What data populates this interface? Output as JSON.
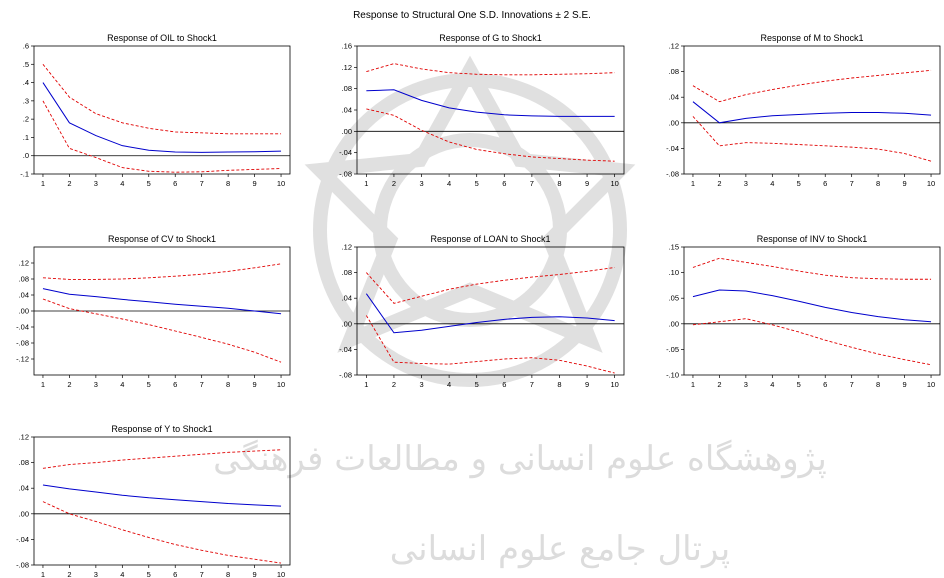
{
  "title": "Response to Structural One S.D. Innovations ± 2 S.E.",
  "watermark": {
    "line1": "پژوهشگاه علوم انسانی و مطالعات فرهنگی",
    "line2": "پرتال جامع علوم انسانی"
  },
  "colors": {
    "response": "#0000cc",
    "band": "#e00000",
    "zero": "#000000",
    "watermark": "#dcdcdc"
  },
  "chart_data": [
    {
      "type": "line",
      "title": "Response of OIL to Shock1",
      "x": [
        1,
        2,
        3,
        4,
        5,
        6,
        7,
        8,
        9,
        10
      ],
      "x_tick_labels": [
        "1",
        "2",
        "3",
        "4",
        "5",
        "6",
        "7",
        "8",
        "9",
        "10"
      ],
      "ylim": [
        -0.1,
        0.6
      ],
      "y_ticks": [
        -0.1,
        0.0,
        0.1,
        0.2,
        0.3,
        0.4,
        0.5,
        0.6
      ],
      "y_tick_labels": [
        "-.1",
        ".0",
        ".1",
        ".2",
        ".3",
        ".4",
        ".5",
        ".6"
      ],
      "series": [
        {
          "role": "response",
          "values": [
            0.4,
            0.18,
            0.11,
            0.055,
            0.03,
            0.02,
            0.018,
            0.02,
            0.022,
            0.025
          ]
        },
        {
          "role": "upper",
          "values": [
            0.5,
            0.32,
            0.23,
            0.18,
            0.15,
            0.13,
            0.125,
            0.12,
            0.12,
            0.12
          ]
        },
        {
          "role": "lower",
          "values": [
            0.3,
            0.04,
            -0.01,
            -0.065,
            -0.085,
            -0.09,
            -0.088,
            -0.08,
            -0.075,
            -0.07
          ]
        }
      ]
    },
    {
      "type": "line",
      "title": "Response of G to Shock1",
      "x": [
        1,
        2,
        3,
        4,
        5,
        6,
        7,
        8,
        9,
        10
      ],
      "x_tick_labels": [
        "1",
        "2",
        "3",
        "4",
        "5",
        "6",
        "7",
        "8",
        "9",
        "10"
      ],
      "ylim": [
        -0.08,
        0.16
      ],
      "y_ticks": [
        -0.08,
        -0.04,
        0.0,
        0.04,
        0.08,
        0.12,
        0.16
      ],
      "y_tick_labels": [
        "-.08",
        "-.04",
        ".00",
        ".04",
        ".08",
        ".12",
        ".16"
      ],
      "series": [
        {
          "role": "response",
          "values": [
            0.076,
            0.078,
            0.058,
            0.044,
            0.036,
            0.031,
            0.029,
            0.028,
            0.028,
            0.028
          ]
        },
        {
          "role": "upper",
          "values": [
            0.112,
            0.127,
            0.117,
            0.11,
            0.107,
            0.106,
            0.106,
            0.107,
            0.108,
            0.11
          ]
        },
        {
          "role": "lower",
          "values": [
            0.042,
            0.03,
            0.002,
            -0.02,
            -0.034,
            -0.042,
            -0.048,
            -0.051,
            -0.054,
            -0.056
          ]
        }
      ]
    },
    {
      "type": "line",
      "title": "Response of M to Shock1",
      "x": [
        1,
        2,
        3,
        4,
        5,
        6,
        7,
        8,
        9,
        10
      ],
      "x_tick_labels": [
        "1",
        "2",
        "3",
        "4",
        "5",
        "6",
        "7",
        "8",
        "9",
        "10"
      ],
      "ylim": [
        -0.08,
        0.12
      ],
      "y_ticks": [
        -0.08,
        -0.04,
        0.0,
        0.04,
        0.08,
        0.12
      ],
      "y_tick_labels": [
        "-.08",
        "-.04",
        ".00",
        ".04",
        ".08",
        ".12"
      ],
      "series": [
        {
          "role": "response",
          "values": [
            0.033,
            0.0,
            0.007,
            0.011,
            0.013,
            0.015,
            0.016,
            0.016,
            0.015,
            0.012
          ]
        },
        {
          "role": "upper",
          "values": [
            0.058,
            0.033,
            0.044,
            0.052,
            0.059,
            0.065,
            0.07,
            0.074,
            0.078,
            0.082
          ]
        },
        {
          "role": "lower",
          "values": [
            0.01,
            -0.036,
            -0.031,
            -0.032,
            -0.034,
            -0.036,
            -0.038,
            -0.041,
            -0.048,
            -0.06
          ]
        }
      ]
    },
    {
      "type": "line",
      "title": "Response of CV to Shock1",
      "x": [
        1,
        2,
        3,
        4,
        5,
        6,
        7,
        8,
        9,
        10
      ],
      "x_tick_labels": [
        "1",
        "2",
        "3",
        "4",
        "5",
        "6",
        "7",
        "8",
        "9",
        "10"
      ],
      "ylim": [
        -0.16,
        0.16
      ],
      "y_ticks": [
        -0.12,
        -0.08,
        -0.04,
        0.0,
        0.04,
        0.08,
        0.12
      ],
      "y_tick_labels": [
        "-.12",
        "-.08",
        "-.04",
        ".00",
        ".04",
        ".08",
        ".12"
      ],
      "series": [
        {
          "role": "response",
          "values": [
            0.056,
            0.042,
            0.036,
            0.029,
            0.023,
            0.017,
            0.012,
            0.007,
            0.0,
            -0.007
          ]
        },
        {
          "role": "upper",
          "values": [
            0.083,
            0.079,
            0.079,
            0.08,
            0.083,
            0.087,
            0.092,
            0.099,
            0.108,
            0.118
          ]
        },
        {
          "role": "lower",
          "values": [
            0.03,
            0.006,
            -0.007,
            -0.02,
            -0.034,
            -0.05,
            -0.066,
            -0.083,
            -0.103,
            -0.128
          ]
        }
      ]
    },
    {
      "type": "line",
      "title": "Response of LOAN to Shock1",
      "x": [
        1,
        2,
        3,
        4,
        5,
        6,
        7,
        8,
        9,
        10
      ],
      "x_tick_labels": [
        "1",
        "2",
        "3",
        "4",
        "5",
        "6",
        "7",
        "8",
        "9",
        "10"
      ],
      "ylim": [
        -0.08,
        0.12
      ],
      "y_ticks": [
        -0.08,
        -0.04,
        0.0,
        0.04,
        0.08,
        0.12
      ],
      "y_tick_labels": [
        "-.08",
        "-.04",
        ".00",
        ".04",
        ".08",
        ".12"
      ],
      "series": [
        {
          "role": "response",
          "values": [
            0.047,
            -0.014,
            -0.01,
            -0.004,
            0.002,
            0.007,
            0.01,
            0.011,
            0.009,
            0.005
          ]
        },
        {
          "role": "upper",
          "values": [
            0.08,
            0.032,
            0.043,
            0.054,
            0.062,
            0.068,
            0.073,
            0.077,
            0.082,
            0.088
          ]
        },
        {
          "role": "lower",
          "values": [
            0.013,
            -0.06,
            -0.062,
            -0.063,
            -0.059,
            -0.055,
            -0.053,
            -0.057,
            -0.066,
            -0.077
          ]
        }
      ]
    },
    {
      "type": "line",
      "title": "Response of INV to Shock1",
      "x": [
        1,
        2,
        3,
        4,
        5,
        6,
        7,
        8,
        9,
        10
      ],
      "x_tick_labels": [
        "1",
        "2",
        "3",
        "4",
        "5",
        "6",
        "7",
        "8",
        "9",
        "10"
      ],
      "ylim": [
        -0.1,
        0.15
      ],
      "y_ticks": [
        -0.1,
        -0.05,
        0.0,
        0.05,
        0.1,
        0.15
      ],
      "y_tick_labels": [
        "-.10",
        "-.05",
        ".00",
        ".05",
        ".10",
        ".15"
      ],
      "series": [
        {
          "role": "response",
          "values": [
            0.053,
            0.066,
            0.064,
            0.055,
            0.044,
            0.032,
            0.022,
            0.014,
            0.008,
            0.004
          ]
        },
        {
          "role": "upper",
          "values": [
            0.11,
            0.128,
            0.12,
            0.112,
            0.103,
            0.095,
            0.09,
            0.088,
            0.087,
            0.087
          ]
        },
        {
          "role": "lower",
          "values": [
            -0.002,
            0.004,
            0.01,
            -0.002,
            -0.016,
            -0.032,
            -0.046,
            -0.059,
            -0.07,
            -0.08
          ]
        }
      ]
    },
    {
      "type": "line",
      "title": "Response of Y to Shock1",
      "x": [
        1,
        2,
        3,
        4,
        5,
        6,
        7,
        8,
        9,
        10
      ],
      "x_tick_labels": [
        "1",
        "2",
        "3",
        "4",
        "5",
        "6",
        "7",
        "8",
        "9",
        "10"
      ],
      "ylim": [
        -0.08,
        0.12
      ],
      "y_ticks": [
        -0.08,
        -0.04,
        0.0,
        0.04,
        0.08,
        0.12
      ],
      "y_tick_labels": [
        "-.08",
        "-.04",
        ".00",
        ".04",
        ".08",
        ".12"
      ],
      "series": [
        {
          "role": "response",
          "values": [
            0.045,
            0.039,
            0.034,
            0.029,
            0.025,
            0.022,
            0.019,
            0.016,
            0.014,
            0.012
          ]
        },
        {
          "role": "upper",
          "values": [
            0.071,
            0.077,
            0.08,
            0.084,
            0.087,
            0.09,
            0.093,
            0.096,
            0.098,
            0.1
          ]
        },
        {
          "role": "lower",
          "values": [
            0.019,
            0.0,
            -0.012,
            -0.025,
            -0.037,
            -0.048,
            -0.057,
            -0.065,
            -0.071,
            -0.077
          ]
        }
      ]
    }
  ]
}
